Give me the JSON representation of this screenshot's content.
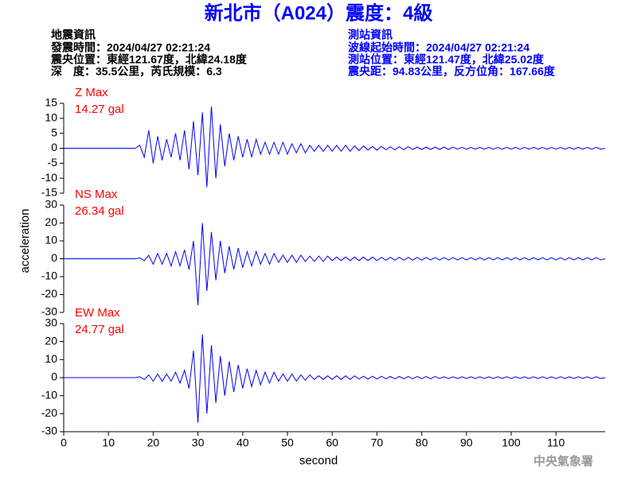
{
  "header": {
    "title": "新北市（A024）震度：4級",
    "left": [
      "地震資訊",
      "發震時間：2024/04/27 02:21:24",
      "震央位置：東經121.67度，北緯24.18度",
      "深　度：35.5公里，芮氏規模：6.3"
    ],
    "right": [
      "測站資訊",
      "波線起始時間：2024/04/27 02:21:24",
      "測站位置：東經121.47度，北緯25.02度",
      "震央距：94.83公里，反方位角：167.66度"
    ]
  },
  "x_label": "second",
  "y_label": "acceleration",
  "footer": "中央氣象署",
  "chart_data": [
    {
      "type": "line",
      "label": "Z Max",
      "max_label": "14.27 gal",
      "color": "#0000ff",
      "label_color": "#ff0000",
      "x": [
        0,
        16,
        17,
        18,
        19,
        20,
        21,
        22,
        23,
        24,
        25,
        26,
        27,
        28,
        29,
        30,
        31,
        32,
        33,
        34,
        35,
        36,
        37,
        38,
        39,
        40,
        41,
        42,
        43,
        44,
        45,
        46,
        47,
        48,
        49,
        50,
        51,
        52,
        53,
        54,
        55,
        56,
        57,
        58,
        59,
        60,
        61,
        62,
        63,
        64,
        65,
        66,
        67,
        68,
        69,
        70,
        71,
        72,
        73,
        74,
        75,
        76,
        77,
        78,
        79,
        80,
        81,
        82,
        83,
        84,
        85,
        86,
        87,
        88,
        89,
        90,
        91,
        92,
        93,
        94,
        95,
        96,
        97,
        98,
        99,
        100,
        101,
        102,
        103,
        104,
        105,
        106,
        107,
        108,
        109,
        110,
        111,
        112,
        113,
        114,
        115,
        116,
        117,
        118,
        119,
        120,
        121
      ],
      "values": [
        0,
        0,
        1,
        -3,
        6,
        -5,
        4,
        -4,
        3,
        -3,
        5,
        -4,
        6,
        -7,
        9,
        -9,
        12,
        -13,
        14,
        -10,
        8,
        -6,
        5,
        -4,
        4,
        -3,
        3,
        -3,
        3,
        -2,
        2,
        -2,
        2,
        -2,
        2,
        -2,
        1.5,
        -1.5,
        1.5,
        -1.5,
        1,
        -1,
        1,
        -1,
        1,
        -1,
        1,
        -1,
        1,
        -1,
        0.8,
        -0.8,
        0.8,
        -0.6,
        0.6,
        -0.6,
        0.6,
        -0.5,
        0.5,
        -0.5,
        0.5,
        -0.5,
        0.5,
        -0.4,
        0.4,
        -0.4,
        0.4,
        -0.4,
        0.4,
        -0.4,
        0.4,
        -0.4,
        0.4,
        -0.3,
        0.3,
        -0.3,
        0.3,
        -0.3,
        0.3,
        -0.3,
        0.3,
        -0.3,
        0.3,
        -0.3,
        0.3,
        -0.3,
        0.3,
        -0.3,
        0.3,
        -0.3,
        0.3,
        -0.3,
        0.3,
        -0.3,
        0.3,
        -0.3,
        0.3,
        -0.3,
        0.3,
        -0.3,
        0.3,
        -0.3,
        0.3,
        -0.3,
        0.3,
        -0.3,
        0
      ],
      "xlim": [
        0,
        121
      ],
      "ylim": [
        -15,
        15
      ],
      "yticks": [
        -15,
        -10,
        -5,
        0,
        5,
        10,
        15
      ]
    },
    {
      "type": "line",
      "label": "NS Max",
      "max_label": "26.34 gal",
      "color": "#0000ff",
      "label_color": "#ff0000",
      "x": [
        0,
        16,
        17,
        18,
        19,
        20,
        21,
        22,
        23,
        24,
        25,
        26,
        27,
        28,
        29,
        30,
        31,
        32,
        33,
        34,
        35,
        36,
        37,
        38,
        39,
        40,
        41,
        42,
        43,
        44,
        45,
        46,
        47,
        48,
        49,
        50,
        51,
        52,
        53,
        54,
        55,
        56,
        57,
        58,
        59,
        60,
        61,
        62,
        63,
        64,
        65,
        66,
        67,
        68,
        69,
        70,
        71,
        72,
        73,
        74,
        75,
        76,
        77,
        78,
        79,
        80,
        81,
        82,
        83,
        84,
        85,
        86,
        87,
        88,
        89,
        90,
        91,
        92,
        93,
        94,
        95,
        96,
        97,
        98,
        99,
        100,
        101,
        102,
        103,
        104,
        105,
        106,
        107,
        108,
        109,
        110,
        111,
        112,
        113,
        114,
        115,
        116,
        117,
        118,
        119,
        120,
        121
      ],
      "values": [
        0,
        0,
        0.5,
        -1,
        2,
        -3,
        3,
        -3,
        3,
        -4,
        4,
        -4,
        5,
        -6,
        10,
        -26,
        20,
        -18,
        15,
        -12,
        10,
        -8,
        7,
        -6,
        6,
        -5,
        4,
        -4,
        4,
        -3,
        3,
        -3,
        3,
        -2,
        2,
        -2,
        2,
        -2,
        2,
        -1.5,
        1.5,
        -1.5,
        1.5,
        -1.5,
        1.5,
        -1,
        1,
        -1,
        1,
        -1,
        1,
        -1,
        1,
        -1,
        1,
        -1,
        0.8,
        -0.8,
        0.8,
        -0.8,
        0.8,
        -0.8,
        0.8,
        -0.8,
        0.8,
        -0.8,
        0.8,
        -0.7,
        0.7,
        -0.7,
        0.7,
        -0.7,
        0.7,
        -0.6,
        0.6,
        -0.6,
        0.6,
        -0.6,
        0.6,
        -0.6,
        0.6,
        -0.6,
        0.6,
        -0.6,
        0.6,
        -0.6,
        0.6,
        -0.6,
        0.6,
        -0.6,
        0.6,
        -0.6,
        0.6,
        -0.6,
        0.6,
        -0.6,
        0.6,
        -0.6,
        0.6,
        -0.6,
        0.6,
        -0.6,
        0.6,
        -0.6,
        0.6,
        -0.6,
        0
      ],
      "xlim": [
        0,
        121
      ],
      "ylim": [
        -30,
        30
      ],
      "yticks": [
        -30,
        -20,
        -10,
        0,
        10,
        20,
        30
      ]
    },
    {
      "type": "line",
      "label": "EW Max",
      "max_label": "24.77 gal",
      "color": "#0000ff",
      "label_color": "#ff0000",
      "x": [
        0,
        16,
        17,
        18,
        19,
        20,
        21,
        22,
        23,
        24,
        25,
        26,
        27,
        28,
        29,
        30,
        31,
        32,
        33,
        34,
        35,
        36,
        37,
        38,
        39,
        40,
        41,
        42,
        43,
        44,
        45,
        46,
        47,
        48,
        49,
        50,
        51,
        52,
        53,
        54,
        55,
        56,
        57,
        58,
        59,
        60,
        61,
        62,
        63,
        64,
        65,
        66,
        67,
        68,
        69,
        70,
        71,
        72,
        73,
        74,
        75,
        76,
        77,
        78,
        79,
        80,
        81,
        82,
        83,
        84,
        85,
        86,
        87,
        88,
        89,
        90,
        91,
        92,
        93,
        94,
        95,
        96,
        97,
        98,
        99,
        100,
        101,
        102,
        103,
        104,
        105,
        106,
        107,
        108,
        109,
        110,
        111,
        112,
        113,
        114,
        115,
        116,
        117,
        118,
        119,
        120,
        121
      ],
      "values": [
        0,
        0,
        0.5,
        -1,
        1.5,
        -2,
        2,
        -2,
        2,
        -2,
        3,
        -3,
        4,
        -6,
        15,
        -25,
        24,
        -20,
        18,
        -14,
        12,
        -10,
        9,
        -8,
        7,
        -6,
        5,
        -5,
        4,
        -4,
        3,
        -3,
        3,
        -2,
        2,
        -2,
        2,
        -2,
        1.5,
        -1.5,
        1.5,
        -1,
        1,
        -1,
        1,
        -1,
        1,
        -1,
        1,
        -1,
        1,
        -0.8,
        0.8,
        -0.8,
        0.8,
        -0.8,
        0.8,
        -0.7,
        0.7,
        -0.7,
        0.7,
        -0.6,
        0.6,
        -0.6,
        0.6,
        -0.6,
        0.6,
        -0.6,
        0.6,
        -0.5,
        0.5,
        -0.5,
        0.5,
        -0.5,
        0.5,
        -0.5,
        0.5,
        -0.5,
        0.5,
        -0.5,
        0.5,
        -0.5,
        0.5,
        -0.5,
        0.5,
        -0.5,
        0.5,
        -0.5,
        0.5,
        -0.5,
        0.5,
        -0.5,
        0.5,
        -0.5,
        0.5,
        -0.5,
        0.5,
        -0.5,
        0.5,
        -0.5,
        0.5,
        -0.5,
        0.5,
        -0.5,
        0.5,
        -0.5,
        0
      ],
      "xlim": [
        0,
        121
      ],
      "ylim": [
        -30,
        30
      ],
      "yticks": [
        -30,
        -20,
        -10,
        0,
        10,
        20,
        30
      ],
      "xticks": [
        0,
        10,
        20,
        30,
        40,
        50,
        60,
        70,
        80,
        90,
        100,
        110
      ]
    }
  ]
}
